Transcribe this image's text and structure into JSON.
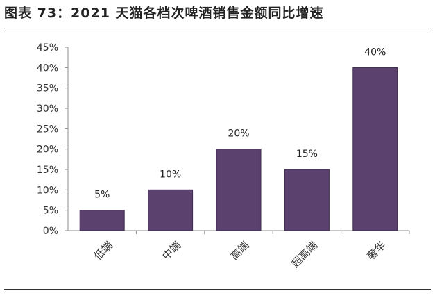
{
  "figure": {
    "title": "图表 73：2021 天猫各档次啤酒销售金额同比增速"
  },
  "chart_data": {
    "type": "bar",
    "categories": [
      "低端",
      "中端",
      "高端",
      "超高端",
      "奢华"
    ],
    "values": [
      5,
      10,
      20,
      15,
      40
    ],
    "data_labels": [
      "5%",
      "10%",
      "20%",
      "15%",
      "40%"
    ],
    "yticks": [
      "0%",
      "5%",
      "10%",
      "15%",
      "20%",
      "25%",
      "30%",
      "35%",
      "40%",
      "45%"
    ],
    "ylim": [
      0,
      45
    ],
    "grid": false,
    "bar_color": "#5b416d"
  }
}
